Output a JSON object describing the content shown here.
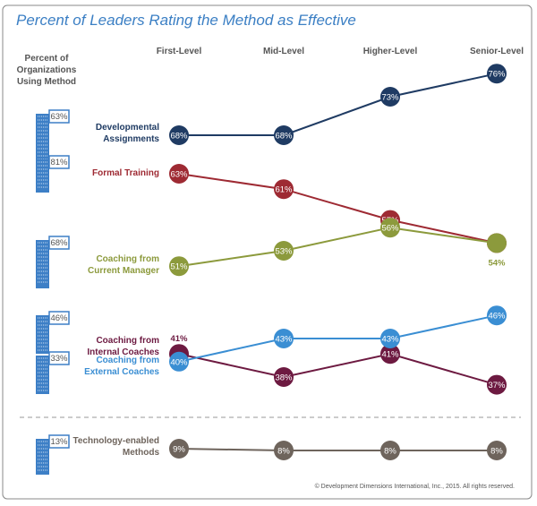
{
  "chart_data": {
    "type": "line",
    "title": "Percent of Leaders Rating the Method as Effective",
    "left_header": [
      "Percent of",
      "Organizations",
      "Using Method"
    ],
    "categories": [
      "First-Level",
      "Mid-Level",
      "Higher-Level",
      "Senior-Level"
    ],
    "grid": false,
    "series": [
      {
        "name": "Developmental Assignments",
        "label_lines": [
          "Developmental",
          "Assignments"
        ],
        "usage": "63%",
        "color": "#1f3b63",
        "values": [
          68,
          68,
          73,
          76
        ]
      },
      {
        "name": "Formal Training",
        "label_lines": [
          "Formal Training"
        ],
        "usage": "81%",
        "color": "#9e2a33",
        "values": [
          63,
          61,
          57,
          54
        ]
      },
      {
        "name": "Coaching from Current Manager",
        "label_lines": [
          "Coaching from",
          "Current Manager"
        ],
        "usage": "68%",
        "color": "#8c9a3c",
        "values": [
          51,
          53,
          56,
          54
        ]
      },
      {
        "name": "Coaching from Internal Coaches",
        "label_lines": [
          "Coaching from",
          "Internal Coaches"
        ],
        "usage": "46%",
        "color": "#6d1a41",
        "values": [
          41,
          38,
          41,
          37
        ]
      },
      {
        "name": "Coaching from External Coaches",
        "label_lines": [
          "Coaching from",
          "External Coaches"
        ],
        "usage": "33%",
        "color": "#3a8ed3",
        "values": [
          40,
          43,
          43,
          46
        ]
      },
      {
        "name": "Technology-enabled Methods",
        "label_lines": [
          "Technology-enabled",
          "Methods"
        ],
        "usage": "13%",
        "color": "#6e645c",
        "values": [
          9,
          8,
          8,
          8
        ]
      }
    ],
    "unit": "%"
  },
  "icons": {
    "usage": "building-icon"
  },
  "footer": "© Development Dimensions International, Inc., 2015. All rights reserved."
}
